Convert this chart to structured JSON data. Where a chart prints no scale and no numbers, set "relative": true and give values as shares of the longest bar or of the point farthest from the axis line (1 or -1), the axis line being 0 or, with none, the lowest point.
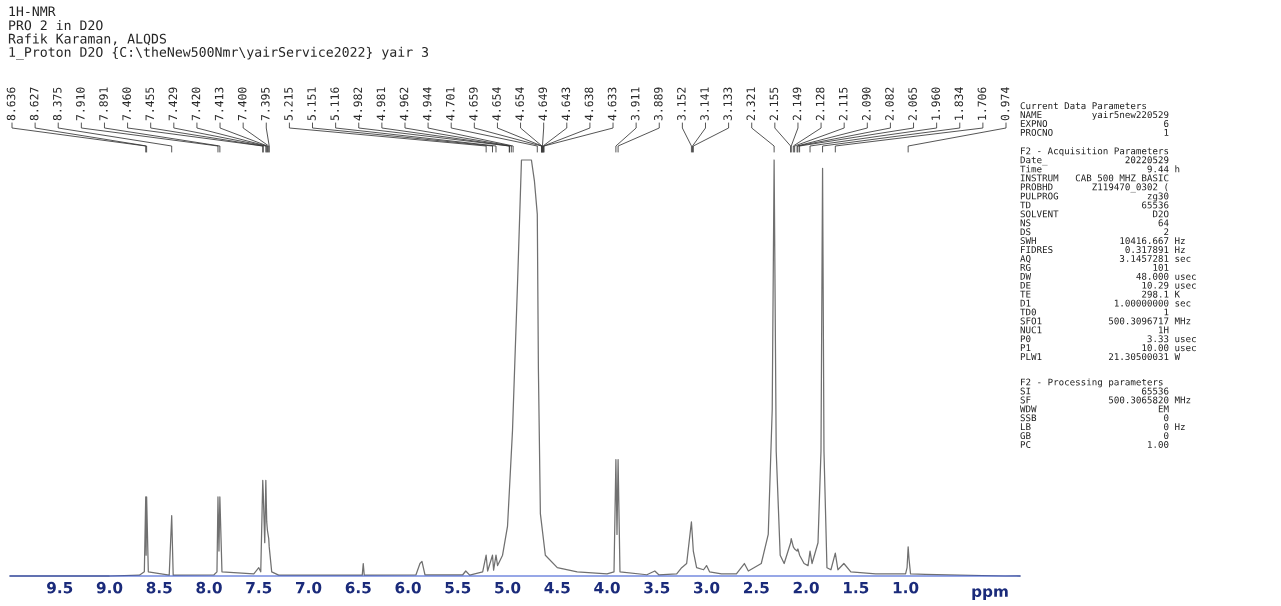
{
  "chart_data": {
    "type": "line",
    "title": "1H-NMR",
    "subtitle": "PRO 2 in D2O\nRafik Karaman, ALQDS\n1_Proton D2O {C:\\theNew500Nmr\\yairService2022} yair 3",
    "xlabel": "ppm",
    "relative": true,
    "grid": false,
    "marker": "none",
    "line_style": "solid",
    "xlim": [
      10.0,
      -0.15
    ],
    "xticks": [
      9.5,
      {
        "value": 9,
        "label": "9.0"
      },
      8.5,
      {
        "value": 8,
        "label": "8.0"
      },
      7.5,
      {
        "value": 7,
        "label": "7.0"
      },
      6.5,
      {
        "value": 6,
        "label": "6.0"
      },
      5.5,
      {
        "value": 5,
        "label": "5.0"
      },
      4.5,
      {
        "value": 4,
        "label": "4.0"
      },
      3.5,
      {
        "value": 3,
        "label": "3.0"
      },
      2.5,
      {
        "value": 2,
        "label": "2.0"
      },
      1.5,
      {
        "value": 1,
        "label": "1.0"
      }
    ],
    "x": [
      10.0,
      9.0,
      8.7,
      8.65,
      8.636,
      8.632,
      8.627,
      8.61,
      8.4,
      8.375,
      8.36,
      7.95,
      7.92,
      7.91,
      7.9,
      7.891,
      7.87,
      7.55,
      7.5,
      7.48,
      7.46,
      7.455,
      7.44,
      7.429,
      7.42,
      7.413,
      7.4,
      7.395,
      7.37,
      7.3,
      6.46,
      6.45,
      6.44,
      5.92,
      5.88,
      5.86,
      5.83,
      5.45,
      5.42,
      5.38,
      5.25,
      5.215,
      5.2,
      5.151,
      5.14,
      5.116,
      5.1,
      5.05,
      5.0,
      4.95,
      4.9,
      4.86,
      4.76,
      4.73,
      4.701,
      4.69,
      4.67,
      4.62,
      4.5,
      4.3,
      4.0,
      3.93,
      3.911,
      3.9,
      3.889,
      3.87,
      3.6,
      3.52,
      3.48,
      3.3,
      3.25,
      3.2,
      3.152,
      3.141,
      3.133,
      3.1,
      3.03,
      3.0,
      2.97,
      2.85,
      2.7,
      2.62,
      2.58,
      2.45,
      2.38,
      2.34,
      2.321,
      2.3,
      2.26,
      2.22,
      2.155,
      2.149,
      2.128,
      2.115,
      2.09,
      2.082,
      2.065,
      2.02,
      1.98,
      1.96,
      1.94,
      1.88,
      1.85,
      1.834,
      1.82,
      1.79,
      1.75,
      1.706,
      1.68,
      1.62,
      1.55,
      1.3,
      1.0,
      0.985,
      0.974,
      0.965,
      0.95,
      0.8,
      0.0,
      -0.15
    ],
    "series": [
      {
        "color": "#707070",
        "values": [
          0.0,
          0.0,
          0.002,
          0.01,
          0.19,
          0.05,
          0.19,
          0.01,
          0.002,
          0.145,
          0.002,
          0.003,
          0.01,
          0.19,
          0.06,
          0.19,
          0.01,
          0.005,
          0.02,
          0.01,
          0.23,
          0.2,
          0.08,
          0.23,
          0.13,
          0.11,
          0.09,
          0.07,
          0.01,
          0.002,
          0.002,
          0.03,
          0.002,
          0.003,
          0.03,
          0.035,
          0.003,
          0.003,
          0.012,
          0.002,
          0.01,
          0.05,
          0.012,
          0.05,
          0.014,
          0.05,
          0.025,
          0.05,
          0.12,
          0.35,
          0.7,
          1.0,
          1.0,
          0.95,
          0.87,
          0.5,
          0.15,
          0.05,
          0.02,
          0.01,
          0.005,
          0.01,
          0.28,
          0.1,
          0.28,
          0.01,
          0.003,
          0.012,
          0.003,
          0.005,
          0.02,
          0.03,
          0.13,
          0.09,
          0.06,
          0.02,
          0.015,
          0.025,
          0.01,
          0.005,
          0.005,
          0.03,
          0.012,
          0.03,
          0.1,
          0.4,
          1.0,
          0.3,
          0.05,
          0.03,
          0.08,
          0.09,
          0.07,
          0.065,
          0.06,
          0.065,
          0.05,
          0.03,
          0.025,
          0.06,
          0.03,
          0.08,
          0.3,
          0.98,
          0.3,
          0.02,
          0.015,
          0.055,
          0.015,
          0.03,
          0.01,
          0.005,
          0.005,
          0.02,
          0.07,
          0.04,
          0.005,
          0.004,
          0.0,
          0.0
        ]
      }
    ],
    "annotations": [
      {
        "text": "8.636",
        "x": 8.636
      },
      {
        "text": "8.627",
        "x": 8.627
      },
      {
        "text": "8.375",
        "x": 8.375
      },
      {
        "text": "7.910",
        "x": 7.91
      },
      {
        "text": "7.891",
        "x": 7.891
      },
      {
        "text": "7.460",
        "x": 7.46
      },
      {
        "text": "7.455",
        "x": 7.455
      },
      {
        "text": "7.429",
        "x": 7.429
      },
      {
        "text": "7.420",
        "x": 7.42
      },
      {
        "text": "7.413",
        "x": 7.413
      },
      {
        "text": "7.400",
        "x": 7.4
      },
      {
        "text": "7.395",
        "x": 7.395
      },
      {
        "text": "5.215",
        "x": 5.215
      },
      {
        "text": "5.151",
        "x": 5.151
      },
      {
        "text": "5.116",
        "x": 5.116
      },
      {
        "text": "4.982",
        "x": 4.982
      },
      {
        "text": "4.981",
        "x": 4.981
      },
      {
        "text": "4.962",
        "x": 4.962
      },
      {
        "text": "4.944",
        "x": 4.944
      },
      {
        "text": "4.701",
        "x": 4.701
      },
      {
        "text": "4.659",
        "x": 4.659
      },
      {
        "text": "4.654",
        "x": 4.654
      },
      {
        "text": "4.654",
        "x": 4.654
      },
      {
        "text": "4.649",
        "x": 4.649
      },
      {
        "text": "4.643",
        "x": 4.643
      },
      {
        "text": "4.638",
        "x": 4.638
      },
      {
        "text": "4.633",
        "x": 4.633
      },
      {
        "text": "3.911",
        "x": 3.911
      },
      {
        "text": "3.889",
        "x": 3.889
      },
      {
        "text": "3.152",
        "x": 3.152
      },
      {
        "text": "3.141",
        "x": 3.141
      },
      {
        "text": "3.133",
        "x": 3.133
      },
      {
        "text": "2.321",
        "x": 2.321
      },
      {
        "text": "2.155",
        "x": 2.155
      },
      {
        "text": "2.149",
        "x": 2.149
      },
      {
        "text": "2.128",
        "x": 2.128
      },
      {
        "text": "2.115",
        "x": 2.115
      },
      {
        "text": "2.090",
        "x": 2.09
      },
      {
        "text": "2.082",
        "x": 2.082
      },
      {
        "text": "2.065",
        "x": 2.065
      },
      {
        "text": "1.960",
        "x": 1.96
      },
      {
        "text": "1.834",
        "x": 1.834
      },
      {
        "text": "1.706",
        "x": 1.706
      },
      {
        "text": "0.974",
        "x": 0.974
      },
      "Current Data Parameters\nNAME         yair5new220529\nEXPNO                     6\nPROCNO                    1",
      "F2 - Acquisition Parameters\nDate_              20220529\nTime                   9.44 h\nINSTRUM   CAB 500 MHZ BASIC\nPROBHD       Z119470_0302 (\nPULPROG                zg30\nTD                    65536\nSOLVENT                 D2O\nNS                       64\nDS                        2\nSWH               10416.667 Hz\nFIDRES             0.317891 Hz\nAQ                3.1457281 sec\nRG                      101\nDW                   48.000 usec\nDE                    10.29 usec\nTE                    298.1 K\nD1               1.00000000 sec\nTD0                       1\nSFO1            500.3096717 MHz\nNUC1                     1H\nP0                     3.33 usec\nP1                    10.00 usec\nPLW1            21.30500031 W",
      "F2 - Processing parameters\nSI                    65536\nSF              500.3065820 MHz\nWDW                      EM\nSSB                       0\nLB                        0 Hz\nGB                        0\nPC                     1.00"
    ]
  }
}
